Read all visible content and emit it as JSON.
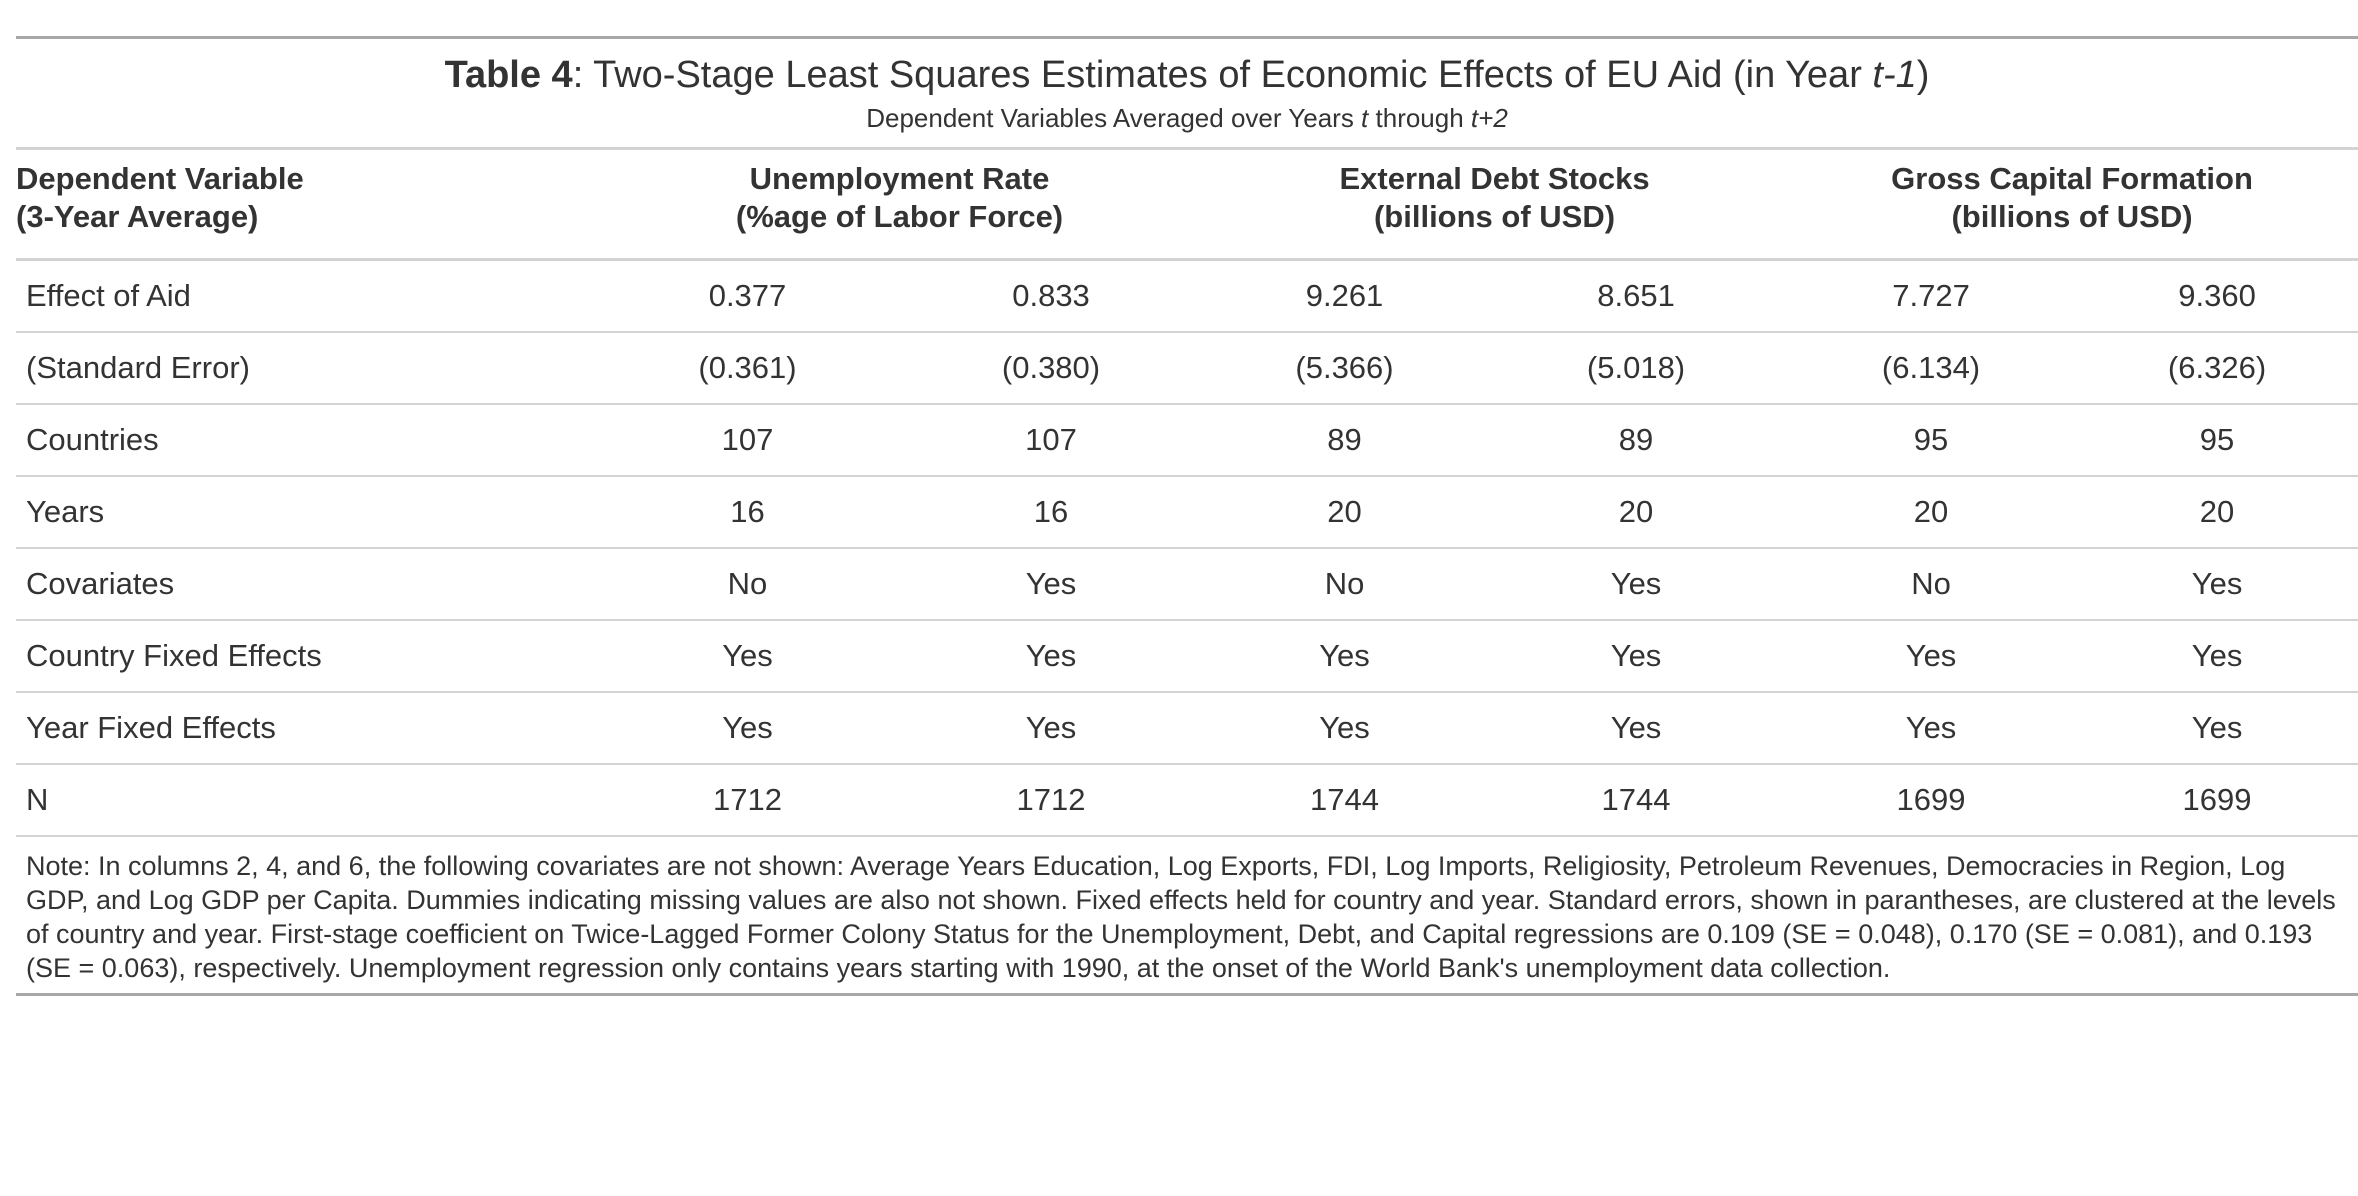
{
  "title": {
    "bold": "Table 4",
    "text": ": Two-Stage Least Squares Estimates of Economic Effects of EU Aid (in Year ",
    "italic": "t-1",
    "close": ")"
  },
  "subtitle": {
    "pre": "Dependent Variables Averaged over Years ",
    "t1": "t",
    "mid": " through ",
    "t2": "t+2"
  },
  "header": {
    "stub_line1": "Dependent Variable",
    "stub_line2": "(3-Year Average)",
    "groups": [
      {
        "line1": "Unemployment Rate",
        "line2": "(%age of Labor Force)"
      },
      {
        "line1": "External Debt Stocks",
        "line2": "(billions of USD)"
      },
      {
        "line1": "Gross Capital Formation",
        "line2": "(billions of USD)"
      }
    ]
  },
  "rows": [
    {
      "label": "Effect of Aid",
      "values": [
        "0.377",
        "0.833",
        "9.261",
        "8.651",
        "7.727",
        "9.360"
      ]
    },
    {
      "label": "(Standard Error)",
      "values": [
        "(0.361)",
        "(0.380)",
        "(5.366)",
        "(5.018)",
        "(6.134)",
        "(6.326)"
      ]
    },
    {
      "label": "Countries",
      "values": [
        "107",
        "107",
        "89",
        "89",
        "95",
        "95"
      ]
    },
    {
      "label": "Years",
      "values": [
        "16",
        "16",
        "20",
        "20",
        "20",
        "20"
      ]
    },
    {
      "label": "Covariates",
      "values": [
        "No",
        "Yes",
        "No",
        "Yes",
        "No",
        "Yes"
      ]
    },
    {
      "label": "Country Fixed Effects",
      "values": [
        "Yes",
        "Yes",
        "Yes",
        "Yes",
        "Yes",
        "Yes"
      ]
    },
    {
      "label": "Year Fixed Effects",
      "values": [
        "Yes",
        "Yes",
        "Yes",
        "Yes",
        "Yes",
        "Yes"
      ]
    },
    {
      "label": "N",
      "values": [
        "1712",
        "1712",
        "1744",
        "1744",
        "1699",
        "1699"
      ]
    }
  ],
  "note": "Note: In columns 2, 4, and 6, the following covariates are not shown: Average Years Education, Log Exports, FDI, Log Imports, Religiosity, Petroleum Revenues, Democracies in Region, Log GDP, and Log GDP per Capita. Dummies indicating missing values are also not shown. Fixed effects held for country and year. Standard errors, shown in parantheses, are clustered at the levels of country and year. First-stage coefficient on Twice-Lagged Former Colony Status for the Unemployment, Debt, and Capital regressions are 0.109 (SE = 0.048), 0.170 (SE = 0.081), and 0.193 (SE = 0.063), respectively. Unemployment regression only contains years starting with 1990, at the onset of the World Bank's unemployment data collection."
}
